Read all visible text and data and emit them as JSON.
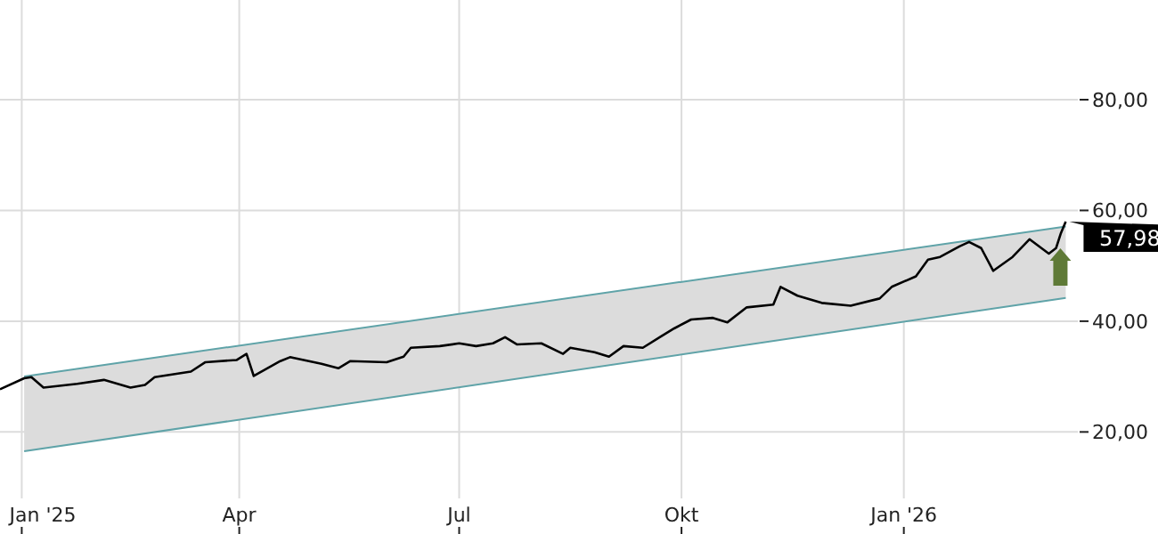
{
  "chart_data": {
    "type": "line",
    "xlim": [
      "2024-12-23",
      "2026-03-14"
    ],
    "ylim": [
      8,
      98
    ],
    "xticks": [
      {
        "value": "2025-01-01",
        "label": "Jan '25"
      },
      {
        "value": "2025-04-01",
        "label": "Apr"
      },
      {
        "value": "2025-07-01",
        "label": "Jul"
      },
      {
        "value": "2025-10-01",
        "label": "Okt"
      },
      {
        "value": "2026-01-01",
        "label": "Jan '26"
      }
    ],
    "yticks": [
      {
        "value": 20,
        "label": "20,00"
      },
      {
        "value": 40,
        "label": "40,00"
      },
      {
        "value": 60,
        "label": "60,00"
      },
      {
        "value": 80,
        "label": "80,00"
      }
    ],
    "grid": true,
    "line_style": "solid",
    "series": [
      {
        "type": "line",
        "color": "#5fa3a8",
        "x": [
          "2025-01-02",
          "2026-03-09"
        ],
        "values": [
          16.5,
          44.2
        ]
      },
      {
        "type": "area",
        "color": "#5fa3a8",
        "x": [
          "2025-01-02",
          "2026-03-09"
        ],
        "values": [
          30.0,
          57.1
        ]
      },
      {
        "color": "#000000",
        "x": [
          "2024-12-23",
          "2025-01-02",
          "2025-01-05",
          "2025-01-10",
          "2025-01-24",
          "2025-02-04",
          "2025-02-15",
          "2025-02-21",
          "2025-02-25",
          "2025-03-12",
          "2025-03-18",
          "2025-03-31",
          "2025-04-04",
          "2025-04-07",
          "2025-04-18",
          "2025-04-22",
          "2025-05-05",
          "2025-05-12",
          "2025-05-17",
          "2025-06-01",
          "2025-06-08",
          "2025-06-11",
          "2025-06-23",
          "2025-07-01",
          "2025-07-08",
          "2025-07-15",
          "2025-07-20",
          "2025-07-25",
          "2025-08-04",
          "2025-08-13",
          "2025-08-16",
          "2025-08-26",
          "2025-09-01",
          "2025-09-07",
          "2025-09-15",
          "2025-09-22",
          "2025-09-28",
          "2025-10-05",
          "2025-10-14",
          "2025-10-20",
          "2025-10-28",
          "2025-11-08",
          "2025-11-11",
          "2025-11-18",
          "2025-11-28",
          "2025-12-10",
          "2025-12-22",
          "2025-12-27",
          "2026-01-06",
          "2026-01-11",
          "2026-01-16",
          "2026-01-24",
          "2026-01-28",
          "2026-02-02",
          "2026-02-07",
          "2026-02-15",
          "2026-02-22",
          "2026-03-02",
          "2026-03-05",
          "2026-03-07",
          "2026-03-09"
        ],
        "values": [
          27.7,
          29.7,
          29.9,
          28.0,
          28.7,
          29.4,
          28.0,
          28.5,
          29.9,
          30.9,
          32.6,
          33.0,
          34.1,
          30.1,
          32.8,
          33.5,
          32.3,
          31.5,
          32.8,
          32.6,
          33.6,
          35.2,
          35.5,
          36.0,
          35.5,
          36.0,
          37.1,
          35.8,
          36.0,
          34.1,
          35.2,
          34.4,
          33.6,
          35.5,
          35.2,
          37.1,
          38.7,
          40.3,
          40.6,
          39.8,
          42.5,
          43.0,
          46.2,
          44.6,
          43.3,
          42.8,
          44.1,
          46.2,
          48.1,
          51.1,
          51.6,
          53.5,
          54.3,
          53.2,
          49.1,
          51.6,
          54.8,
          52.2,
          53.2,
          55.9,
          58.0
        ]
      }
    ],
    "annotations": [
      {
        "text": "57,98",
        "x": "2026-03-09",
        "y": 57.98
      }
    ]
  }
}
